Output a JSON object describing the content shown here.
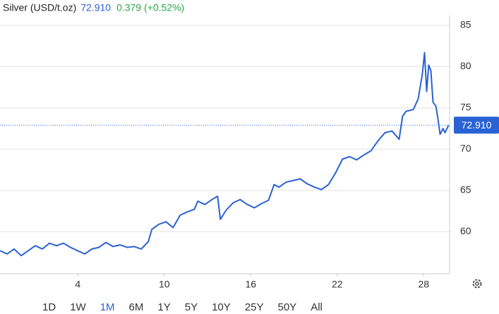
{
  "header": {
    "name": "Silver (USD/t.oz)",
    "change": "0.379 (+0.52%)"
  },
  "chart_data": {
    "type": "line",
    "x": [
      -1.4,
      -0.91,
      -0.42,
      0.07,
      0.56,
      1.05,
      1.54,
      2.03,
      2.52,
      3.01,
      3.5,
      3.99,
      4.48,
      4.97,
      5.46,
      5.95,
      6.44,
      6.93,
      7.42,
      7.91,
      8.4,
      8.89,
      9.14,
      9.63,
      10.12,
      10.61,
      11.1,
      11.59,
      12.08,
      12.33,
      12.82,
      13.31,
      13.7,
      13.89,
      14.29,
      14.78,
      15.27,
      15.76,
      16.25,
      16.74,
      17.23,
      17.62,
      17.96,
      18.45,
      18.94,
      19.43,
      19.92,
      20.41,
      20.9,
      21.39,
      21.88,
      22.37,
      22.86,
      23.35,
      23.85,
      24.34,
      24.83,
      25.32,
      25.81,
      26.3,
      26.54,
      26.79,
      27.28,
      27.62,
      27.91,
      28.06,
      28.21,
      28.35,
      28.5,
      28.65,
      28.85,
      28.99,
      29.14,
      29.34,
      29.48,
      29.73
    ],
    "series": [
      {
        "name": "Silver",
        "color": "#2a62d4",
        "values": [
          57.7,
          57.3,
          57.9,
          57.1,
          57.7,
          58.3,
          57.9,
          58.6,
          58.3,
          58.6,
          58.1,
          57.7,
          57.3,
          57.9,
          58.1,
          58.7,
          58.2,
          58.4,
          58.1,
          58.2,
          57.9,
          58.8,
          60.3,
          60.9,
          61.2,
          60.5,
          62.0,
          62.4,
          62.7,
          63.7,
          63.3,
          63.9,
          64.3,
          61.5,
          62.6,
          63.5,
          63.9,
          63.3,
          62.9,
          63.4,
          63.8,
          65.7,
          65.4,
          66.0,
          66.2,
          66.4,
          65.8,
          65.4,
          65.1,
          65.7,
          67.1,
          68.8,
          69.1,
          68.7,
          69.3,
          69.8,
          71.0,
          72.0,
          72.2,
          71.2,
          74.0,
          74.6,
          74.8,
          76.1,
          79.1,
          81.7,
          77.0,
          80.2,
          79.5,
          75.7,
          75.2,
          73.7,
          71.8,
          72.5,
          72.0,
          72.91
        ]
      }
    ],
    "last_price": {
      "value": 72.91,
      "label": "72.910"
    },
    "xlim": [
      -1.4,
      29.8
    ],
    "ylim": [
      54.9,
      86.2
    ],
    "xticks": [
      4,
      10,
      16,
      22,
      28
    ],
    "yticks": [
      60,
      65,
      70,
      75,
      80,
      85
    ],
    "grid": true,
    "ranges": [
      "1D",
      "1W",
      "1M",
      "6M",
      "1Y",
      "5Y",
      "10Y",
      "25Y",
      "50Y",
      "All"
    ],
    "active_range": "1M"
  }
}
